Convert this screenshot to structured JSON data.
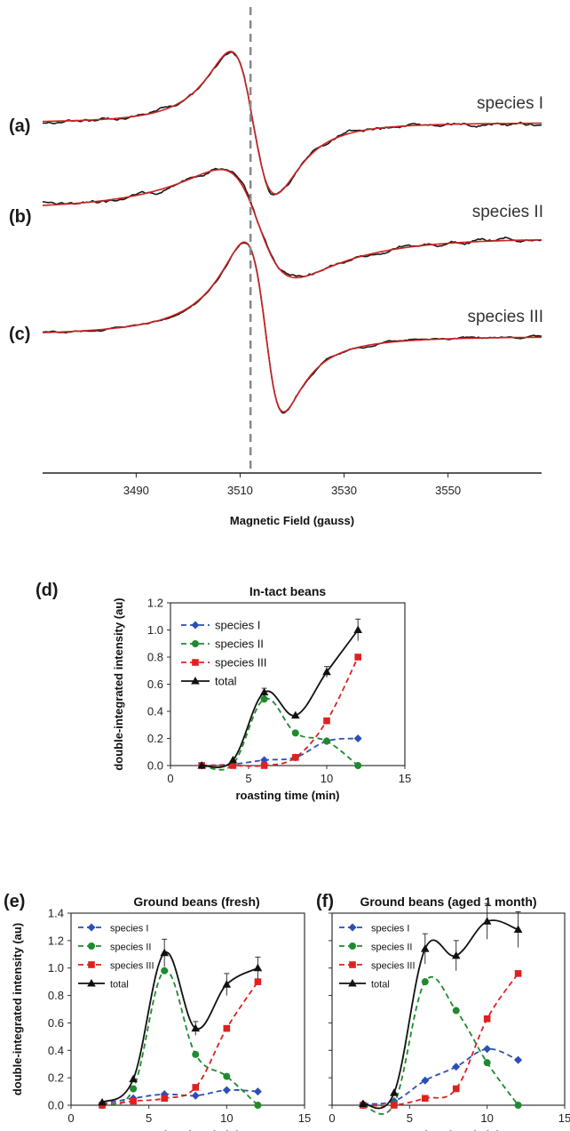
{
  "chart_data": [
    {
      "panel": "epr",
      "type": "line",
      "xlabel": "Magnetic Field (gauss)",
      "xticks": [
        3490,
        3510,
        3530,
        3550
      ],
      "xlim": [
        3472,
        3568
      ],
      "reference_line_x": 3512,
      "colors": {
        "data": "#1a1a1a",
        "fit": "#cc2222",
        "reference": "#888888"
      },
      "series": [
        {
          "panel_label": "(a)",
          "name": "species I",
          "center": 3512.5,
          "width": 7.5,
          "shape": "derivative",
          "baseline": 0.55,
          "amplitude": 1.0
        },
        {
          "panel_label": "(b)",
          "name": "species II",
          "center": 3513.5,
          "width": 8.5,
          "shape": "asymmetric",
          "baseline": 0.0,
          "amplitude": 1.0
        },
        {
          "panel_label": "(c)",
          "name": "species III",
          "center": 3515,
          "width": 5.0,
          "shape": "asymmetric",
          "baseline": -1.65,
          "amplitude": 1.3
        }
      ]
    },
    {
      "panel": "d",
      "panel_label": "(d)",
      "type": "line",
      "title": "In-tact beans",
      "xlabel": "roasting time (min)",
      "ylabel": "double-integrated intensity (au)",
      "xlim": [
        0,
        15
      ],
      "ylim": [
        0,
        1.2
      ],
      "xticks": [
        0,
        5,
        10,
        15
      ],
      "yticks": [
        "0.0",
        "0.2",
        "0.4",
        "0.6",
        "0.8",
        "1.0",
        "1.2"
      ],
      "legend_position": "top-left",
      "x": [
        2,
        4,
        6,
        8,
        10,
        12
      ],
      "series": [
        {
          "name": "species I",
          "values": [
            0.0,
            0.01,
            0.04,
            0.06,
            0.18,
            0.2
          ],
          "color": "#2b4fb5",
          "marker": "diamond",
          "dashed": true
        },
        {
          "name": "species II",
          "values": [
            0.0,
            0.01,
            0.49,
            0.24,
            0.18,
            0.0
          ],
          "color": "#1f8a2e",
          "marker": "circle",
          "dashed": true
        },
        {
          "name": "species III",
          "values": [
            0.0,
            0.0,
            0.0,
            0.06,
            0.33,
            0.8
          ],
          "color": "#e02020",
          "marker": "square",
          "dashed": true
        },
        {
          "name": "total",
          "values": [
            0.0,
            0.04,
            0.54,
            0.37,
            0.69,
            1.0
          ],
          "errors": [
            0,
            0,
            0.03,
            0,
            0.04,
            0.08
          ],
          "color": "#111111",
          "marker": "triangle",
          "dashed": false
        }
      ]
    },
    {
      "panel": "e",
      "panel_label": "(e)",
      "type": "line",
      "title": "Ground beans (fresh)",
      "xlabel": "roasting time (min)",
      "ylabel": "double-integrated intensity (au)",
      "xlim": [
        0,
        15
      ],
      "ylim": [
        0,
        1.4
      ],
      "xticks": [
        0,
        5,
        10,
        15
      ],
      "yticks": [
        "0.0",
        "0.2",
        "0.4",
        "0.6",
        "0.8",
        "1.0",
        "1.2",
        "1.4"
      ],
      "legend_position": "top-left",
      "x": [
        2,
        4,
        6,
        8,
        10,
        12
      ],
      "series": [
        {
          "name": "species I",
          "values": [
            0.01,
            0.05,
            0.08,
            0.07,
            0.11,
            0.1
          ],
          "color": "#2b4fb5",
          "marker": "diamond",
          "dashed": true
        },
        {
          "name": "species II",
          "values": [
            0.0,
            0.12,
            0.98,
            0.37,
            0.21,
            0.0
          ],
          "color": "#1f8a2e",
          "marker": "circle",
          "dashed": true
        },
        {
          "name": "species III",
          "values": [
            0.0,
            0.03,
            0.05,
            0.13,
            0.56,
            0.9
          ],
          "color": "#e02020",
          "marker": "square",
          "dashed": true
        },
        {
          "name": "total",
          "values": [
            0.02,
            0.19,
            1.11,
            0.56,
            0.88,
            1.0
          ],
          "errors": [
            0,
            0,
            0.1,
            0.05,
            0.08,
            0.08
          ],
          "color": "#111111",
          "marker": "triangle",
          "dashed": false
        }
      ]
    },
    {
      "panel": "f",
      "panel_label": "(f)",
      "type": "line",
      "title": "Ground beans (aged 1 month)",
      "xlabel": "roasting time (min)",
      "ylabel": "",
      "xlim": [
        0,
        15
      ],
      "ylim": [
        0,
        1.4
      ],
      "xticks": [
        0,
        5,
        10,
        15
      ],
      "yticks": [],
      "legend_position": "top-left",
      "x": [
        2,
        4,
        6,
        8,
        10,
        12
      ],
      "series": [
        {
          "name": "species I",
          "values": [
            0.01,
            0.03,
            0.18,
            0.28,
            0.41,
            0.33
          ],
          "color": "#2b4fb5",
          "marker": "diamond",
          "dashed": true
        },
        {
          "name": "species II",
          "values": [
            0.0,
            0.01,
            0.9,
            0.69,
            0.31,
            0.0
          ],
          "color": "#1f8a2e",
          "marker": "circle",
          "dashed": true
        },
        {
          "name": "species III",
          "values": [
            0.0,
            0.0,
            0.05,
            0.12,
            0.63,
            0.96
          ],
          "color": "#e02020",
          "marker": "square",
          "dashed": true
        },
        {
          "name": "total",
          "values": [
            0.01,
            0.09,
            1.14,
            1.09,
            1.34,
            1.28
          ],
          "errors": [
            0,
            0,
            0.11,
            0.11,
            0.13,
            0.13
          ],
          "color": "#111111",
          "marker": "triangle",
          "dashed": false
        }
      ]
    }
  ]
}
